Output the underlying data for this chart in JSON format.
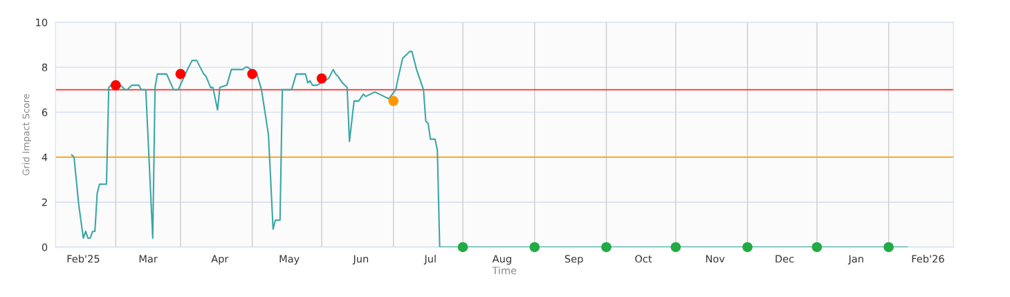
{
  "chart_data": {
    "type": "line",
    "xlabel": "Time",
    "ylabel": "Grid Impact Score",
    "xlim": [
      "2025-01-20",
      "2026-02-12"
    ],
    "ylim": [
      0,
      10
    ],
    "yticks": [
      0,
      2,
      4,
      6,
      8,
      10
    ],
    "xticks": [
      {
        "value": "2025-02-01",
        "label": "Feb'25"
      },
      {
        "value": "2025-02-15",
        "label": null
      },
      {
        "value": "2025-03-01",
        "label": "Mar"
      },
      {
        "value": "2025-03-15",
        "label": null
      },
      {
        "value": "2025-04-01",
        "label": "Apr"
      },
      {
        "value": "2025-04-15",
        "label": null
      },
      {
        "value": "2025-05-01",
        "label": "May"
      },
      {
        "value": "2025-05-15",
        "label": null
      },
      {
        "value": "2025-06-01",
        "label": "Jun"
      },
      {
        "value": "2025-06-15",
        "label": null
      },
      {
        "value": "2025-07-01",
        "label": "Jul"
      },
      {
        "value": "2025-07-15",
        "label": null
      },
      {
        "value": "2025-08-01",
        "label": "Aug"
      },
      {
        "value": "2025-08-15",
        "label": null
      },
      {
        "value": "2025-09-01",
        "label": "Sep"
      },
      {
        "value": "2025-09-15",
        "label": null
      },
      {
        "value": "2025-10-01",
        "label": "Oct"
      },
      {
        "value": "2025-10-15",
        "label": null
      },
      {
        "value": "2025-11-01",
        "label": "Nov"
      },
      {
        "value": "2025-11-15",
        "label": null
      },
      {
        "value": "2025-12-01",
        "label": "Dec"
      },
      {
        "value": "2025-12-15",
        "label": null
      },
      {
        "value": "2026-01-01",
        "label": "Jan"
      },
      {
        "value": "2026-01-15",
        "label": null
      },
      {
        "value": "2026-02-01",
        "label": "Feb'26"
      }
    ],
    "grid": true,
    "marker": "none",
    "line_style": "solid",
    "ref_lines": [
      {
        "axis": "y",
        "value": 7,
        "label": null,
        "color": "#ff2a2a"
      },
      {
        "axis": "y",
        "value": 4,
        "label": null,
        "color": "#ffa726"
      }
    ],
    "series": [
      {
        "color": "#3aa6a6",
        "x": [
          "2025-01-27",
          "2025-01-28",
          "2025-01-30",
          "2025-02-01",
          "2025-02-02",
          "2025-02-03",
          "2025-02-04",
          "2025-02-05",
          "2025-02-06",
          "2025-02-07",
          "2025-02-08",
          "2025-02-11",
          "2025-02-12",
          "2025-02-13",
          "2025-02-17",
          "2025-02-19",
          "2025-02-20",
          "2025-02-22",
          "2025-02-25",
          "2025-02-26",
          "2025-02-28",
          "2025-03-03",
          "2025-03-04",
          "2025-03-05",
          "2025-03-09",
          "2025-03-12",
          "2025-03-14",
          "2025-03-18",
          "2025-03-20",
          "2025-03-22",
          "2025-03-25",
          "2025-03-26",
          "2025-03-28",
          "2025-03-29",
          "2025-03-31",
          "2025-04-01",
          "2025-04-04",
          "2025-04-06",
          "2025-04-11",
          "2025-04-12",
          "2025-04-13",
          "2025-04-17",
          "2025-04-19",
          "2025-04-22",
          "2025-04-24",
          "2025-04-25",
          "2025-04-27",
          "2025-04-28",
          "2025-05-02",
          "2025-05-04",
          "2025-05-08",
          "2025-05-09",
          "2025-05-10",
          "2025-05-11",
          "2025-05-13",
          "2025-05-18",
          "2025-05-20",
          "2025-05-21",
          "2025-05-22",
          "2025-05-24",
          "2025-05-26",
          "2025-05-27",
          "2025-05-29",
          "2025-05-31",
          "2025-06-02",
          "2025-06-03",
          "2025-06-07",
          "2025-06-09",
          "2025-06-11",
          "2025-06-13",
          "2025-06-16",
          "2025-06-17",
          "2025-06-19",
          "2025-06-21",
          "2025-06-22",
          "2025-06-23",
          "2025-06-25",
          "2025-06-28",
          "2025-06-29",
          "2025-06-30",
          "2025-07-01",
          "2025-07-03",
          "2025-07-04",
          "2025-07-05",
          "2026-01-23"
        ],
        "values": [
          4.1,
          4.0,
          1.9,
          0.4,
          0.7,
          0.4,
          0.4,
          0.7,
          0.7,
          2.4,
          2.8,
          2.8,
          7.1,
          7.2,
          7.2,
          7.0,
          7.0,
          7.2,
          7.2,
          7.0,
          7.0,
          0.4,
          7.1,
          7.7,
          7.7,
          7.0,
          7.0,
          7.9,
          8.3,
          8.3,
          7.7,
          7.6,
          7.1,
          7.1,
          6.1,
          7.1,
          7.2,
          7.9,
          7.9,
          8.0,
          8.0,
          7.7,
          7.0,
          5.0,
          0.8,
          1.2,
          1.2,
          7.0,
          7.0,
          7.7,
          7.7,
          7.3,
          7.4,
          7.2,
          7.2,
          7.5,
          7.9,
          7.7,
          7.6,
          7.3,
          7.1,
          4.7,
          6.5,
          6.5,
          6.8,
          6.7,
          6.9,
          6.8,
          6.7,
          6.6,
          7.0,
          7.5,
          8.4,
          8.6,
          8.7,
          8.7,
          7.9,
          7.0,
          5.6,
          5.5,
          4.8,
          4.8,
          4.3,
          0,
          0
        ]
      },
      {
        "type": "scatter",
        "marker": "circle",
        "x": [
          "2025-02-15",
          "2025-03-15",
          "2025-04-15",
          "2025-05-15",
          "2025-06-15",
          "2025-07-15",
          "2025-08-15",
          "2025-09-15",
          "2025-10-15",
          "2025-11-15",
          "2025-12-15",
          "2026-01-15"
        ],
        "values": [
          7.2,
          7.7,
          7.7,
          7.5,
          6.5,
          0,
          0,
          0,
          0,
          0,
          0,
          0
        ],
        "colors": [
          "#ff0000",
          "#ff0000",
          "#ff0000",
          "#ff0000",
          "#ff9800",
          "#22aa44",
          "#22aa44",
          "#22aa44",
          "#22aa44",
          "#22aa44",
          "#22aa44",
          "#22aa44"
        ]
      }
    ]
  }
}
